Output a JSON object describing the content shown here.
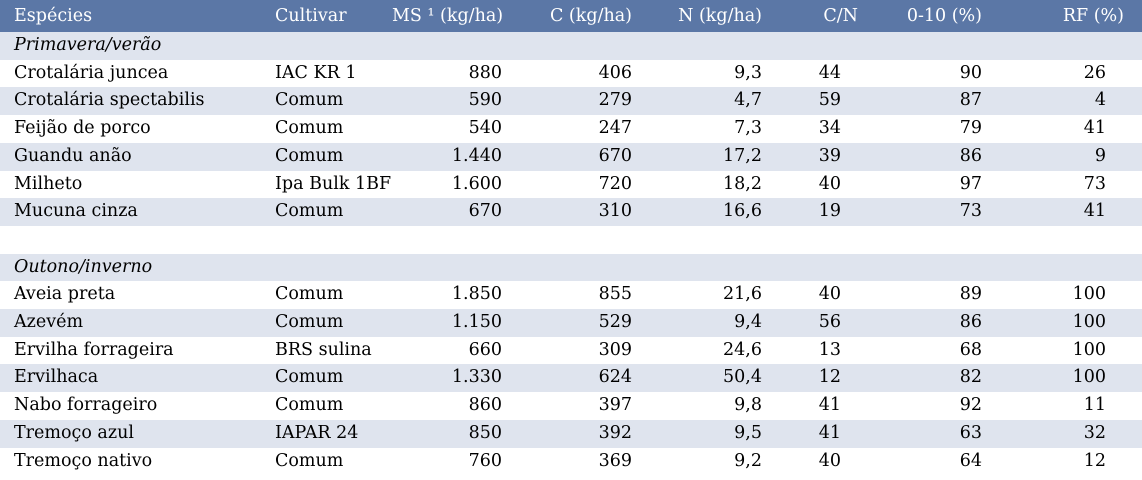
{
  "header": {
    "especies": "Espécies",
    "cultivar": "Cultivar",
    "ms": "MS ¹ (kg/ha)",
    "c": "C (kg/ha)",
    "n": "N (kg/ha)",
    "cn": "C/N",
    "cover": "0-10 (%)",
    "rf": "RF (%)"
  },
  "sections": [
    {
      "title": "Primavera/verão",
      "rows": [
        {
          "especie": "Crotalária juncea",
          "cultivar": "IAC KR 1",
          "ms": "880",
          "c": "406",
          "n": "9,3",
          "cn": "44",
          "cover": "90",
          "rf": "26"
        },
        {
          "especie": "Crotalária spectabilis",
          "cultivar": "Comum",
          "ms": "590",
          "c": "279",
          "n": "4,7",
          "cn": "59",
          "cover": "87",
          "rf": "4"
        },
        {
          "especie": "Feijão de porco",
          "cultivar": "Comum",
          "ms": "540",
          "c": "247",
          "n": "7,3",
          "cn": "34",
          "cover": "79",
          "rf": "41"
        },
        {
          "especie": "Guandu anão",
          "cultivar": "Comum",
          "ms": "1.440",
          "c": "670",
          "n": "17,2",
          "cn": "39",
          "cover": "86",
          "rf": "9"
        },
        {
          "especie": "Milheto",
          "cultivar": "Ipa Bulk 1BF",
          "ms": "1.600",
          "c": "720",
          "n": "18,2",
          "cn": "40",
          "cover": "97",
          "rf": "73"
        },
        {
          "especie": "Mucuna cinza",
          "cultivar": "Comum",
          "ms": "670",
          "c": "310",
          "n": "16,6",
          "cn": "19",
          "cover": "73",
          "rf": "41"
        }
      ]
    },
    {
      "title": "Outono/inverno",
      "rows": [
        {
          "especie": "Aveia preta",
          "cultivar": "Comum",
          "ms": "1.850",
          "c": "855",
          "n": "21,6",
          "cn": "40",
          "cover": "89",
          "rf": "100"
        },
        {
          "especie": "Azevém",
          "cultivar": "Comum",
          "ms": "1.150",
          "c": "529",
          "n": "9,4",
          "cn": "56",
          "cover": "86",
          "rf": "100"
        },
        {
          "especie": "Ervilha forrageira",
          "cultivar": "BRS sulina",
          "ms": "660",
          "c": "309",
          "n": "24,6",
          "cn": "13",
          "cover": "68",
          "rf": "100"
        },
        {
          "especie": "Ervilhaca",
          "cultivar": "Comum",
          "ms": "1.330",
          "c": "624",
          "n": "50,4",
          "cn": "12",
          "cover": "82",
          "rf": "100"
        },
        {
          "especie": "Nabo forrageiro",
          "cultivar": "Comum",
          "ms": "860",
          "c": "397",
          "n": "9,8",
          "cn": "41",
          "cover": "92",
          "rf": "11"
        },
        {
          "especie": "Tremoço azul",
          "cultivar": "IAPAR 24",
          "ms": "850",
          "c": "392",
          "n": "9,5",
          "cn": "41",
          "cover": "63",
          "rf": "32"
        },
        {
          "especie": "Tremoço nativo",
          "cultivar": "Comum",
          "ms": "760",
          "c": "369",
          "n": "9,2",
          "cn": "40",
          "cover": "64",
          "rf": "12"
        }
      ]
    }
  ],
  "colors": {
    "header_bg": "#5b77a6",
    "header_text": "#ffffff",
    "row_shade": "#dfe4ee",
    "row_plain": "#ffffff"
  }
}
